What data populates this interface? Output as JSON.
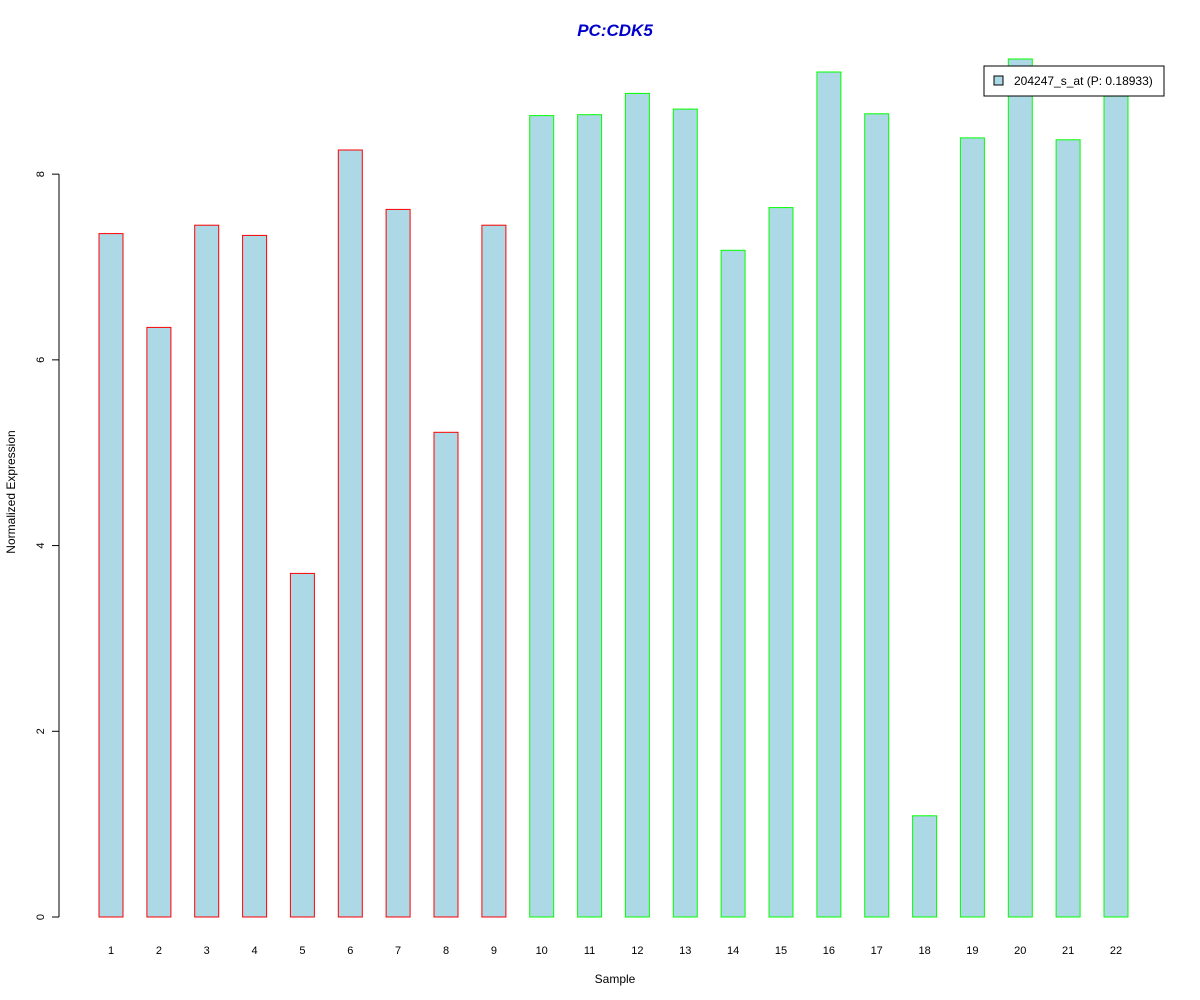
{
  "chart_data": {
    "type": "bar",
    "title": "PC:CDK5",
    "xlabel": "Sample",
    "ylabel": "Normalized Expression",
    "categories": [
      "1",
      "2",
      "3",
      "4",
      "5",
      "6",
      "7",
      "8",
      "9",
      "10",
      "11",
      "12",
      "13",
      "14",
      "15",
      "16",
      "17",
      "18",
      "19",
      "20",
      "21",
      "22"
    ],
    "series": [
      {
        "name": "204247_s_at (P: 0.18933)",
        "values": [
          7.36,
          6.35,
          7.45,
          7.34,
          3.7,
          8.26,
          7.62,
          5.22,
          7.45,
          8.63,
          8.64,
          8.87,
          8.7,
          7.18,
          7.64,
          9.1,
          8.65,
          1.09,
          8.39,
          9.24,
          8.37,
          8.84
        ]
      }
    ],
    "ylim": [
      0,
      9.24
    ],
    "yticks": [
      0,
      2,
      4,
      6,
      8
    ],
    "grid": false,
    "legend_position": "top-right",
    "colors": {
      "title": "#0000CC",
      "bar_fill": "#ADD8E6",
      "group1_border": "#FF0000",
      "group2_border": "#00FF00",
      "axis": "#000000"
    },
    "border_groups": {
      "red": [
        "1",
        "2",
        "3",
        "4",
        "5",
        "6",
        "7",
        "8",
        "9"
      ],
      "green": [
        "10",
        "11",
        "12",
        "13",
        "14",
        "15",
        "16",
        "17",
        "18",
        "19",
        "20",
        "21",
        "22"
      ]
    }
  }
}
